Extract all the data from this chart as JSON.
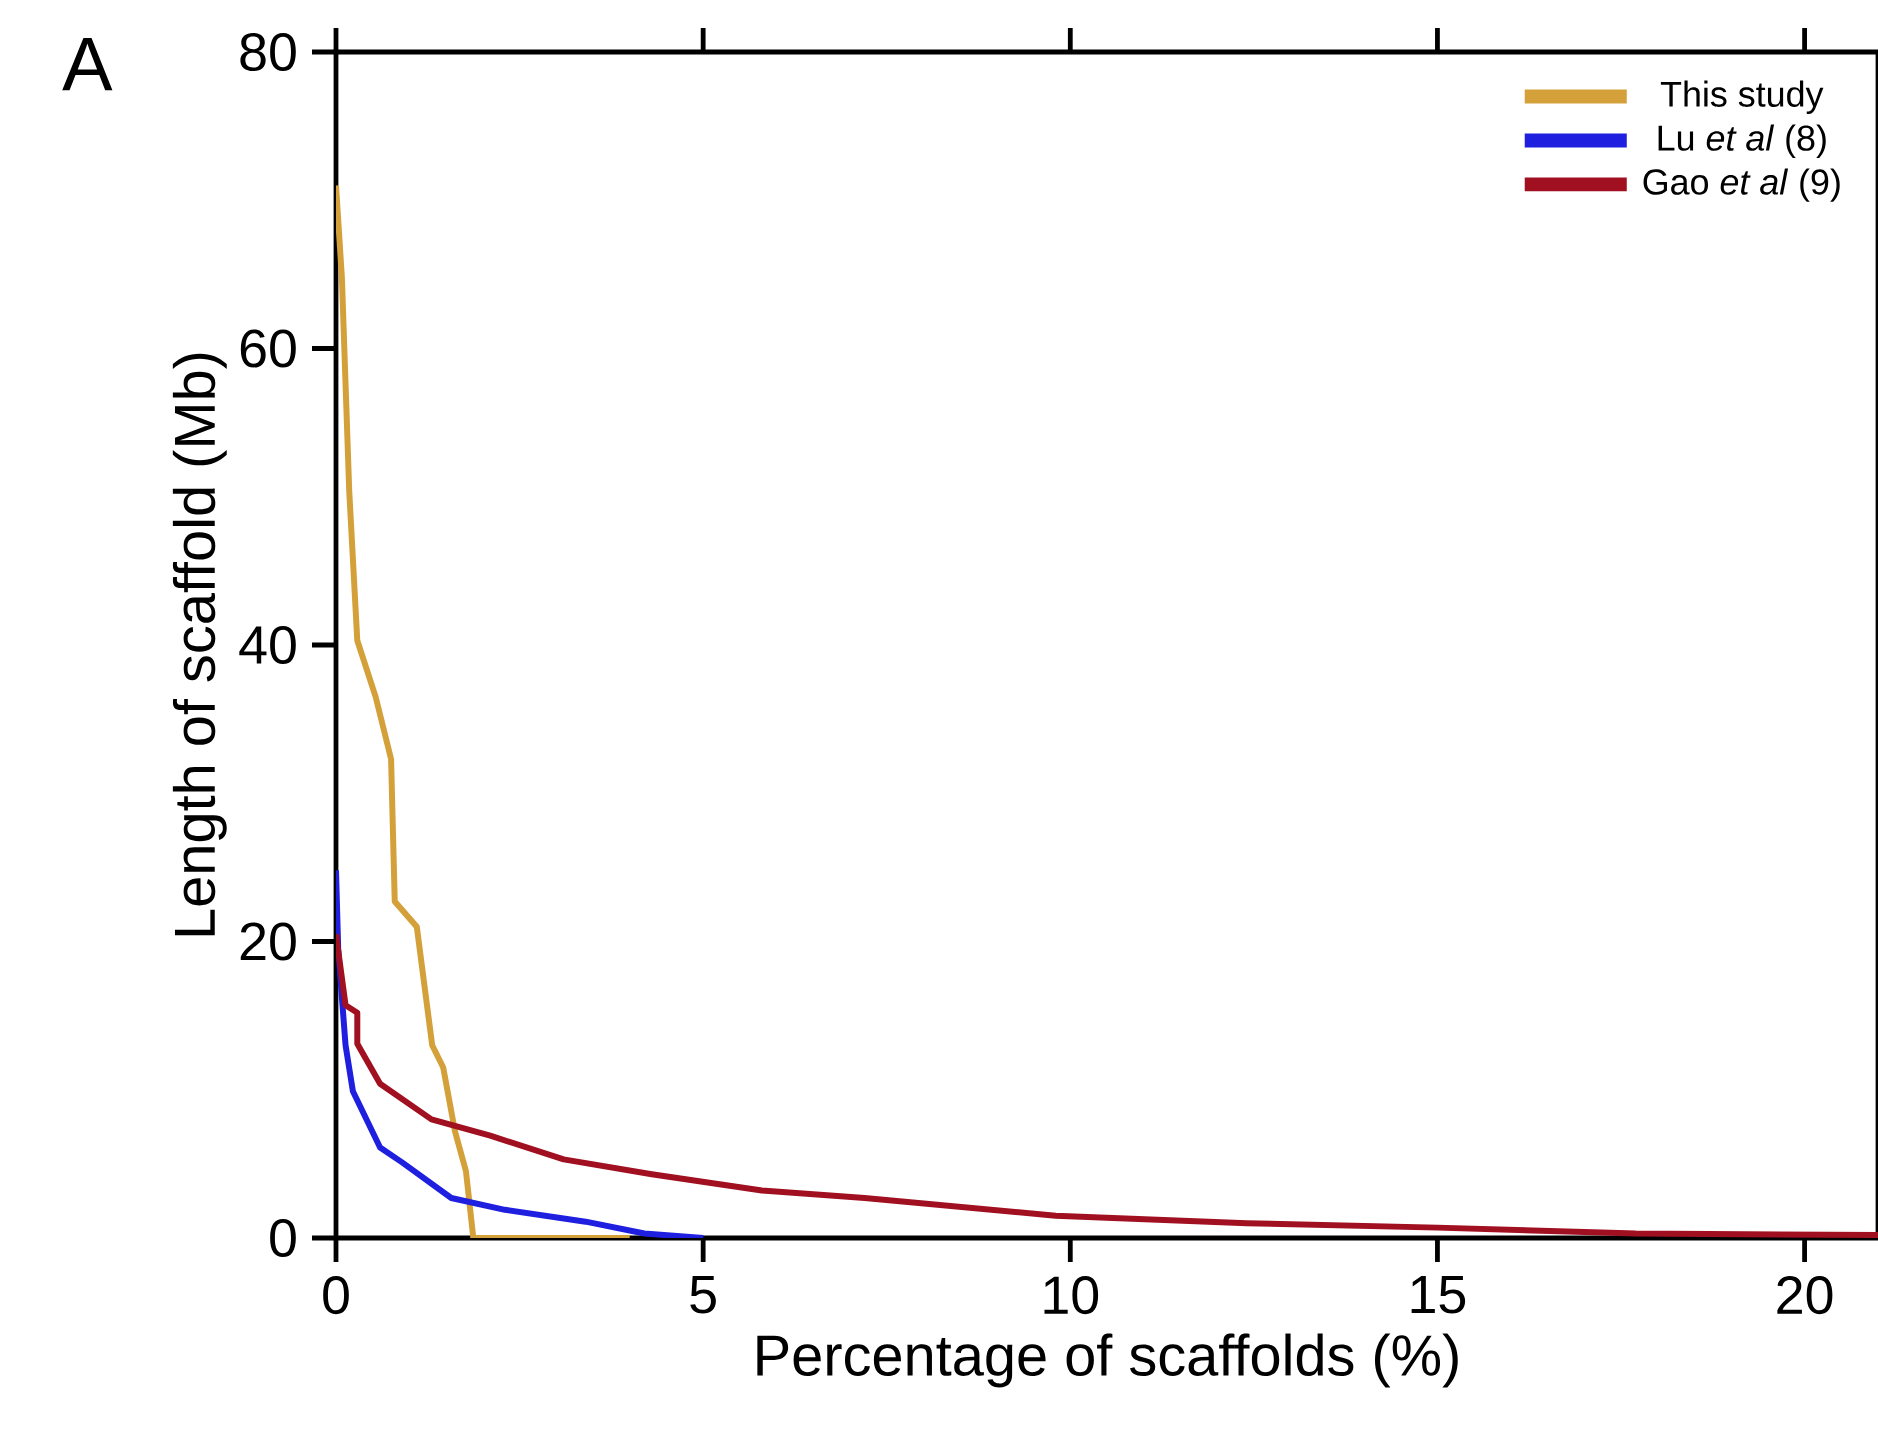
{
  "chart_data": {
    "type": "line",
    "xlabel": "Percentage of scaffolds (%)",
    "ylabel": "Length of scaffold (Mb)",
    "annotations": [
      "A"
    ],
    "xlim": [
      0,
      21
    ],
    "ylim": [
      0,
      80
    ],
    "xticks": [
      0,
      5,
      10,
      15,
      20
    ],
    "yticks": [
      0,
      20,
      40,
      60,
      80
    ],
    "legend": "top right",
    "line_style": "solid",
    "series": [
      {
        "name": "This study",
        "color": "#d4a03a",
        "x": [
          0,
          0.08,
          0.18,
          0.29,
          0.54,
          0.75,
          0.8,
          1.1,
          1.31,
          1.46,
          1.62,
          1.77,
          1.87,
          2.5,
          4
        ],
        "values": [
          71,
          64.8,
          50.4,
          40.3,
          36.5,
          32.3,
          22.7,
          21,
          13,
          11.5,
          7.2,
          4.5,
          0,
          0,
          0
        ]
      },
      {
        "name": "Lu *et al* (8)",
        "color": "#1f1fe0",
        "x": [
          0,
          0.03,
          0.13,
          0.23,
          0.6,
          0.9,
          1.57,
          2.3,
          3.4,
          4.2,
          5
        ],
        "values": [
          24.8,
          19.5,
          13,
          9.9,
          6.1,
          5.1,
          2.7,
          1.9,
          1.1,
          0.3,
          0
        ]
      },
      {
        "name": "Gao *et al* (9)",
        "color": "#a01020",
        "x": [
          0,
          0.13,
          0.29,
          0.29,
          0.6,
          1.3,
          2.1,
          3.1,
          4.3,
          5.8,
          7.2,
          9.8,
          12.4,
          15,
          17.7,
          21
        ],
        "values": [
          20.5,
          15.7,
          15.2,
          13.1,
          10.4,
          8,
          6.9,
          5.3,
          4.3,
          3.2,
          2.7,
          1.5,
          1,
          0.7,
          0.3,
          0.2
        ]
      }
    ]
  }
}
